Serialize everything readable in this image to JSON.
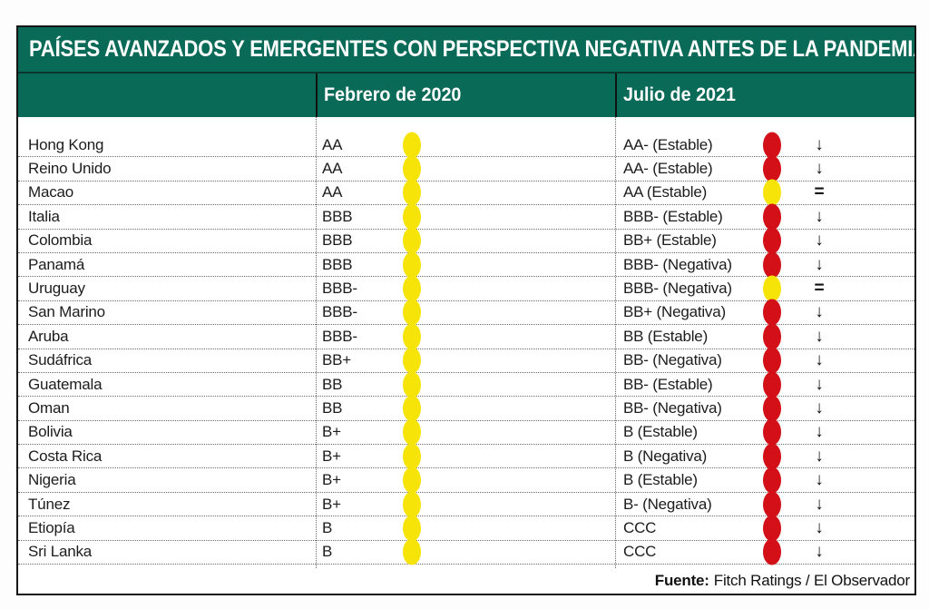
{
  "chart_data": {
    "type": "table",
    "title": "PAÍSES AVANZADOS Y EMERGENTES CON PERSPECTIVA NEGATIVA ANTES DE LA PANDEMIA",
    "column_headers": {
      "country": "",
      "feb": "Febrero de 2020",
      "jul": "Julio de 2021"
    },
    "rows": [
      {
        "country": "Hong Kong",
        "feb_rating": "AA",
        "feb_dot": "yellow",
        "jul_rating": "AA- (Estable)",
        "jul_dot": "red",
        "trend": "down"
      },
      {
        "country": "Reino Unido",
        "feb_rating": "AA",
        "feb_dot": "yellow",
        "jul_rating": "AA- (Estable)",
        "jul_dot": "red",
        "trend": "down"
      },
      {
        "country": "Macao",
        "feb_rating": "AA",
        "feb_dot": "yellow",
        "jul_rating": "AA (Estable)",
        "jul_dot": "yellow",
        "trend": "equal"
      },
      {
        "country": "Italia",
        "feb_rating": "BBB",
        "feb_dot": "yellow",
        "jul_rating": "BBB- (Estable)",
        "jul_dot": "red",
        "trend": "down"
      },
      {
        "country": "Colombia",
        "feb_rating": "BBB",
        "feb_dot": "yellow",
        "jul_rating": "BB+ (Estable)",
        "jul_dot": "red",
        "trend": "down"
      },
      {
        "country": "Panamá",
        "feb_rating": "BBB",
        "feb_dot": "yellow",
        "jul_rating": "BBB- (Negativa)",
        "jul_dot": "red",
        "trend": "down"
      },
      {
        "country": "Uruguay",
        "feb_rating": "BBB-",
        "feb_dot": "yellow",
        "jul_rating": "BBB- (Negativa)",
        "jul_dot": "yellow",
        "trend": "equal"
      },
      {
        "country": "San Marino",
        "feb_rating": "BBB-",
        "feb_dot": "yellow",
        "jul_rating": "BB+ (Negativa)",
        "jul_dot": "red",
        "trend": "down"
      },
      {
        "country": "Aruba",
        "feb_rating": "BBB-",
        "feb_dot": "yellow",
        "jul_rating": "BB (Estable)",
        "jul_dot": "red",
        "trend": "down"
      },
      {
        "country": "Sudáfrica",
        "feb_rating": "BB+",
        "feb_dot": "yellow",
        "jul_rating": "BB- (Negativa)",
        "jul_dot": "red",
        "trend": "down"
      },
      {
        "country": "Guatemala",
        "feb_rating": "BB",
        "feb_dot": "yellow",
        "jul_rating": "BB- (Estable)",
        "jul_dot": "red",
        "trend": "down"
      },
      {
        "country": "Oman",
        "feb_rating": "BB",
        "feb_dot": "yellow",
        "jul_rating": "BB- (Negativa)",
        "jul_dot": "red",
        "trend": "down"
      },
      {
        "country": "Bolivia",
        "feb_rating": "B+",
        "feb_dot": "yellow",
        "jul_rating": "B (Estable)",
        "jul_dot": "red",
        "trend": "down"
      },
      {
        "country": "Costa Rica",
        "feb_rating": "B+",
        "feb_dot": "yellow",
        "jul_rating": "B (Negativa)",
        "jul_dot": "red",
        "trend": "down"
      },
      {
        "country": "Nigeria",
        "feb_rating": "B+",
        "feb_dot": "yellow",
        "jul_rating": "B (Estable)",
        "jul_dot": "red",
        "trend": "down"
      },
      {
        "country": "Túnez",
        "feb_rating": "B+",
        "feb_dot": "yellow",
        "jul_rating": "B- (Negativa)",
        "jul_dot": "red",
        "trend": "down"
      },
      {
        "country": "Etiopía",
        "feb_rating": "B",
        "feb_dot": "yellow",
        "jul_rating": "CCC",
        "jul_dot": "red",
        "trend": "down"
      },
      {
        "country": "Sri Lanka",
        "feb_rating": "B",
        "feb_dot": "yellow",
        "jul_rating": "CCC",
        "jul_dot": "red",
        "trend": "down"
      }
    ],
    "legend": {
      "dot_colors": {
        "yellow": "#F6E409",
        "red": "#D30F17"
      },
      "trend_symbols": {
        "down": "↓",
        "equal": "="
      }
    },
    "source_label": "Fuente:",
    "source_text": "Fitch Ratings / El Observador"
  },
  "colors": {
    "header_green": "#0A6A58",
    "border_black": "#151515"
  }
}
